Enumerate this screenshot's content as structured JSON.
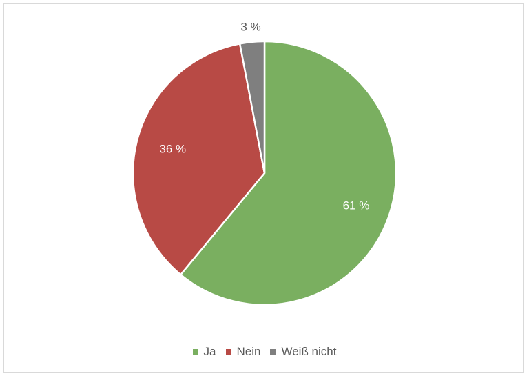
{
  "chart_data": {
    "type": "pie",
    "title": "",
    "slices": [
      {
        "name": "Ja",
        "value": 61,
        "label": "61 %",
        "color": "#7aaf60"
      },
      {
        "name": "Nein",
        "value": 36,
        "label": "36 %",
        "color": "#b84a45"
      },
      {
        "name": "Weiß nicht",
        "value": 3,
        "label": "3 %",
        "color": "#7f7f7f"
      }
    ],
    "start_angle": "12 o'clock",
    "direction": "clockwise",
    "legend_position": "bottom"
  }
}
